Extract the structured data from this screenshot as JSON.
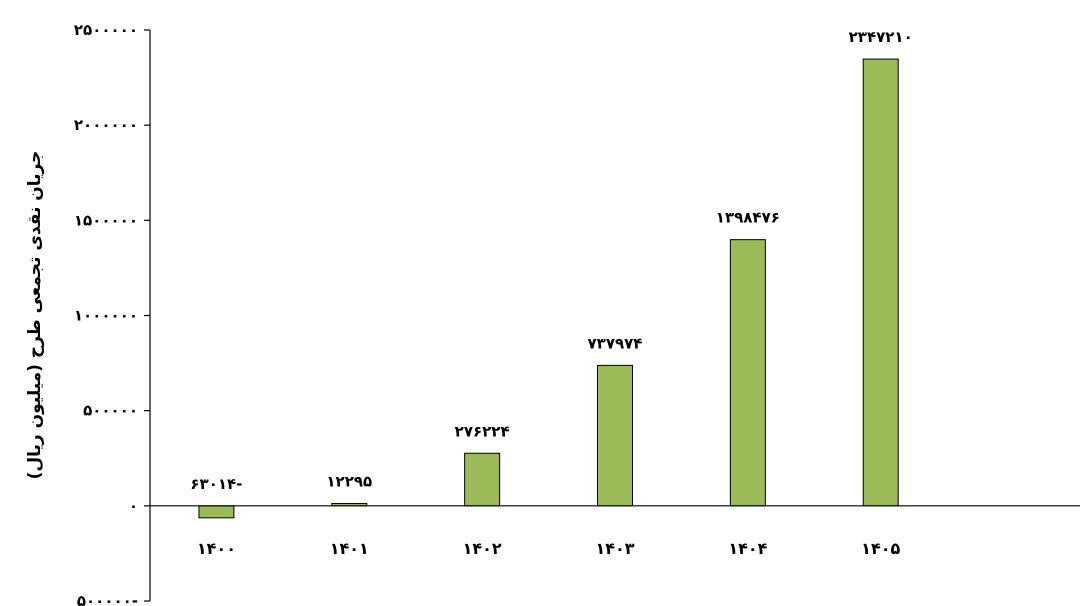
{
  "chart_data": {
    "type": "bar",
    "categories": [
      "۱۴۰۰",
      "۱۴۰۱",
      "۱۴۰۲",
      "۱۴۰۳",
      "۱۴۰۴",
      "۱۴۰۵"
    ],
    "values": [
      -63014,
      12295,
      276224,
      737974,
      1398476,
      2347210
    ],
    "data_labels": [
      "۶۳۰۱۴-",
      "۱۲۲۹۵",
      "۲۷۶۲۲۴",
      "۷۳۷۹۷۴",
      "۱۳۹۸۴۷۶",
      "۲۳۴۷۲۱۰"
    ],
    "ylim": [
      -500000,
      2500000
    ],
    "yticks": [
      -500000,
      0,
      500000,
      1000000,
      1500000,
      2000000,
      2500000
    ],
    "ytick_labels": [
      "۵۰۰۰۰۰-",
      "۰",
      "۵۰۰۰۰۰",
      "۱۰۰۰۰۰۰",
      "۱۵۰۰۰۰۰",
      "۲۰۰۰۰۰۰",
      "۲۵۰۰۰۰۰"
    ],
    "ylabel": "جریان نقدی تجمعی طرح (میلیون ریال)",
    "xlabel": "",
    "title": "",
    "grid": false,
    "legend": "none",
    "colors": {
      "bar_fill": "#9BBB59",
      "bar_stroke": "#000000",
      "axis": "#000000"
    }
  }
}
